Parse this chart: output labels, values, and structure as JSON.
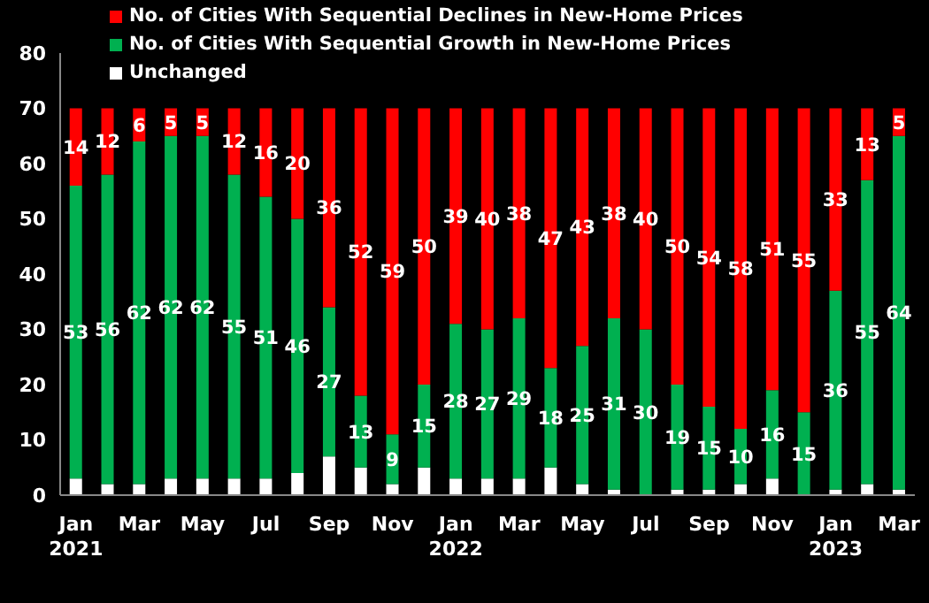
{
  "chart_data": {
    "type": "bar",
    "stacked": true,
    "categories": [
      "Jan 2021",
      null,
      "Mar",
      null,
      "May",
      null,
      "Jul",
      null,
      "Sep",
      null,
      "Nov",
      null,
      "Jan 2022",
      null,
      "Mar",
      null,
      "May",
      null,
      "Jul",
      null,
      "Sep",
      null,
      "Nov",
      null,
      "Jan 2023",
      null,
      "Mar"
    ],
    "series": [
      {
        "name": "Unchanged",
        "color": "#ffffff",
        "values": [
          3,
          2,
          2,
          3,
          3,
          3,
          3,
          4,
          7,
          5,
          2,
          5,
          3,
          3,
          3,
          5,
          2,
          1,
          0,
          1,
          1,
          2,
          3,
          0,
          1,
          2,
          1
        ]
      },
      {
        "name": "No. of Cities With Sequential Growth in New-Home Prices",
        "color": "#00b050",
        "values": [
          53,
          56,
          62,
          62,
          62,
          55,
          51,
          46,
          27,
          13,
          9,
          15,
          28,
          27,
          29,
          18,
          25,
          31,
          30,
          19,
          15,
          10,
          16,
          15,
          36,
          55,
          64
        ],
        "value_labels": [
          "53",
          "56",
          "62",
          "62",
          "62",
          "55",
          "51",
          "46",
          "27",
          "13",
          "9",
          "15",
          "28",
          "27",
          "29",
          "18",
          "25",
          "31",
          "30",
          "19",
          "15",
          "10",
          "16",
          "15",
          "36",
          "55",
          "64"
        ]
      },
      {
        "name": "No. of Cities With Sequential Declines in New-Home Prices",
        "color": "#ff0000",
        "values": [
          14,
          12,
          6,
          5,
          5,
          12,
          16,
          20,
          36,
          52,
          59,
          50,
          39,
          40,
          38,
          47,
          43,
          38,
          40,
          50,
          54,
          58,
          51,
          55,
          33,
          13,
          5
        ],
        "value_labels": [
          "14",
          "12",
          "6",
          "5",
          "5",
          "12",
          "16",
          "20",
          "36",
          "52",
          "59",
          "50",
          "39",
          "40",
          "38",
          "47",
          "43",
          "38",
          "40",
          "50",
          "54",
          "58",
          "51",
          "55",
          "33",
          "13",
          "5"
        ]
      }
    ],
    "ylim": [
      0,
      80
    ],
    "yticks": [
      0,
      10,
      20,
      30,
      40,
      50,
      60,
      70,
      80
    ],
    "legend": "top left"
  }
}
